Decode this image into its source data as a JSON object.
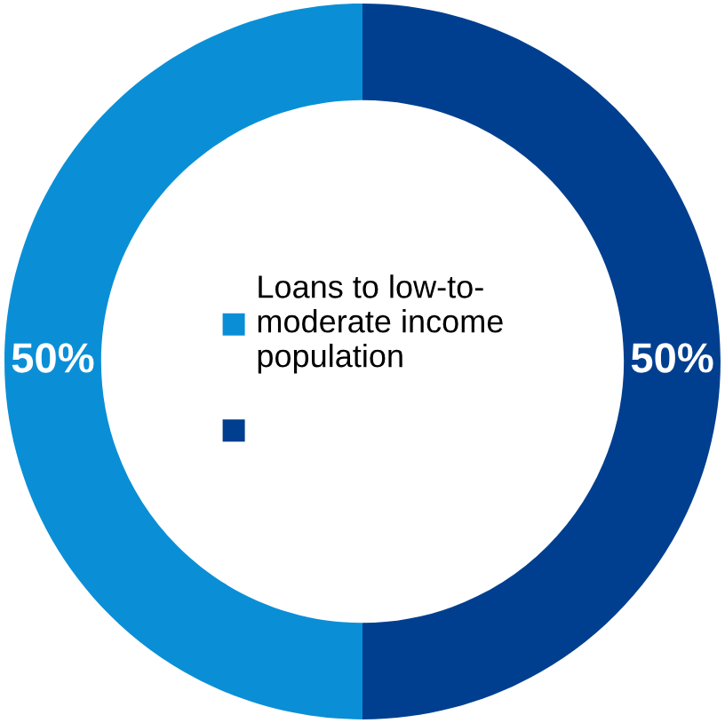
{
  "chart_data": {
    "type": "donut",
    "categories": [
      "Loans to low-to-\nmoderate income\npopulation",
      null
    ],
    "values": [
      50,
      50
    ],
    "colors": [
      "#0a8fd6",
      "#003f8f"
    ],
    "value_labels": [
      "50%",
      "50%"
    ],
    "legend": "center"
  }
}
